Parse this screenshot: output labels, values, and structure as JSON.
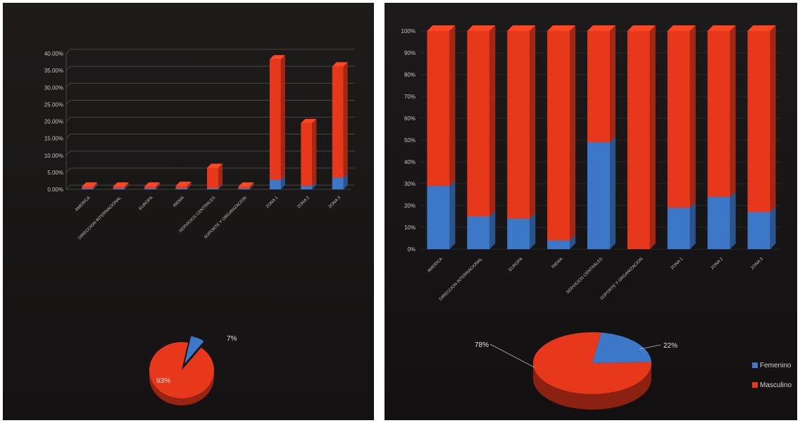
{
  "colors": {
    "red": "#e8381c",
    "blue": "#3d78c8"
  },
  "chart_data": [
    {
      "id": "left-bar",
      "type": "bar",
      "categories": [
        "AMERICA",
        "DIRECCION INTERNACIONAL",
        "EUROPA",
        "RIEMA",
        "SERVICIOS CENTRALES",
        "SOPORTE Y ORGANIZACION",
        "ZONA 1",
        "ZONA 2",
        "ZONA 3"
      ],
      "series": [
        {
          "name": "Femenino",
          "values": [
            0.1,
            0.1,
            0.1,
            0.1,
            0.3,
            0.0,
            2.8,
            1.0,
            3.4
          ],
          "color": "#3d78c8"
        },
        {
          "name": "Masculino",
          "values": [
            0.5,
            0.5,
            0.5,
            0.7,
            6.0,
            0.5,
            35.5,
            18.5,
            32.8
          ],
          "color": "#e8381c"
        }
      ],
      "yticks": [
        "0.00%",
        "5.00%",
        "10.00%",
        "15.00%",
        "20.00%",
        "25.00%",
        "30.00%",
        "35.00%",
        "40.00%"
      ],
      "ylim": [
        0,
        40
      ]
    },
    {
      "id": "right-bar",
      "type": "bar",
      "stacked": "percent",
      "categories": [
        "AMERICA",
        "DIRECCION INTERNACIONAL",
        "EUROPA",
        "RIEMA",
        "SERVICIOS CENTRALES",
        "SOPORTE Y ORGANIZACION",
        "ZONA 1",
        "ZONA 2",
        "ZONA 3"
      ],
      "series": [
        {
          "name": "Femenino",
          "values": [
            29,
            15,
            14,
            4,
            49,
            0,
            19,
            24,
            17
          ],
          "color": "#3d78c8"
        },
        {
          "name": "Masculino",
          "values": [
            71,
            85,
            86,
            96,
            51,
            100,
            81,
            76,
            83
          ],
          "color": "#e8381c"
        }
      ],
      "yticks": [
        "0%",
        "10%",
        "20%",
        "30%",
        "40%",
        "50%",
        "60%",
        "70%",
        "80%",
        "90%",
        "100%"
      ],
      "ylim": [
        0,
        100
      ]
    },
    {
      "id": "left-pie",
      "type": "pie",
      "slices": [
        {
          "label": "7%",
          "value": 7,
          "color": "#3d78c8"
        },
        {
          "label": "93%",
          "value": 93,
          "color": "#e8381c"
        }
      ]
    },
    {
      "id": "right-pie",
      "type": "pie",
      "slices": [
        {
          "label": "22%",
          "value": 22,
          "color": "#3d78c8"
        },
        {
          "label": "78%",
          "value": 78,
          "color": "#e8381c"
        }
      ],
      "legend": [
        {
          "label": "Femenino",
          "color": "#3d78c8"
        },
        {
          "label": "Masculino",
          "color": "#e8381c"
        }
      ],
      "legend_position": "right"
    }
  ]
}
